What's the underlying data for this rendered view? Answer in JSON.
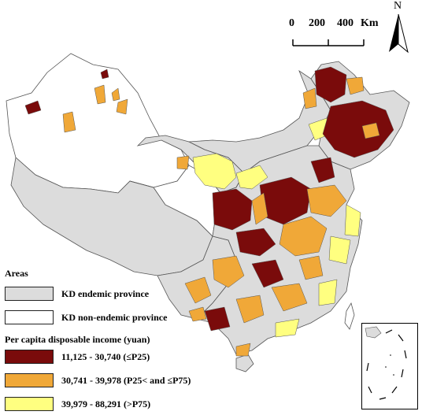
{
  "scale_bar": {
    "label_0": "0",
    "label_200": "200",
    "label_400": "400",
    "unit": "Km"
  },
  "north_arrow": {
    "label": "N",
    "icon": "north-arrow-icon"
  },
  "legend": {
    "areas_title": "Areas",
    "areas": [
      {
        "label": "KD endemic province",
        "color": "#dcdcdc"
      },
      {
        "label": "KD non-endemic province",
        "color": "#ffffff"
      }
    ],
    "income_title": "Per capita disposable income (yuan)",
    "income_classes": [
      {
        "label": "11,125 - 30,740 (≤P25)",
        "color": "#7a0b0b"
      },
      {
        "label": "30,741 - 39,978 (P25< and ≤P75)",
        "color": "#f0a838"
      },
      {
        "label": "39,979 - 88,291 (>P75)",
        "color": "#ffff80"
      }
    ]
  },
  "inset": {
    "description_icon": "south-china-sea-inset-icon"
  }
}
